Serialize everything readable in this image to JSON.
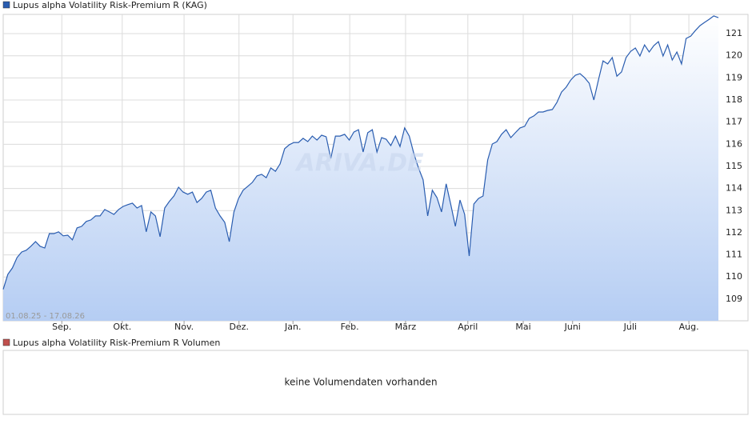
{
  "chart_data": [
    {
      "type": "area",
      "series": [
        {
          "name": "Lupus alpha Volatility Risk-Premium R (KAG)",
          "color": "#2a5db0",
          "values": [
            109.44,
            110.12,
            110.41,
            110.88,
            111.13,
            111.21,
            111.39,
            111.6,
            111.39,
            111.31,
            111.96,
            111.96,
            112.04,
            111.86,
            111.89,
            111.68,
            112.22,
            112.29,
            112.51,
            112.58,
            112.76,
            112.76,
            113.05,
            112.94,
            112.83,
            113.05,
            113.19,
            113.27,
            113.34,
            113.12,
            113.23,
            112.04,
            112.94,
            112.76,
            111.82,
            113.12,
            113.41,
            113.66,
            114.06,
            113.84,
            113.74,
            113.84,
            113.37,
            113.55,
            113.84,
            113.92,
            113.12,
            112.76,
            112.47,
            111.6,
            112.94,
            113.55,
            113.92,
            114.1,
            114.28,
            114.57,
            114.64,
            114.49,
            114.93,
            114.78,
            115.11,
            115.8,
            115.98,
            116.08,
            116.08,
            116.27,
            116.12,
            116.37,
            116.19,
            116.41,
            116.34,
            115.36,
            116.37,
            116.37,
            116.45,
            116.19,
            116.55,
            116.66,
            115.65,
            116.52,
            116.66,
            115.65,
            116.3,
            116.23,
            115.94,
            116.37,
            115.9,
            116.74,
            116.37,
            115.58,
            114.93,
            114.39,
            112.76,
            113.92,
            113.59,
            112.94,
            114.21,
            113.27,
            112.29,
            113.48,
            112.83,
            110.95,
            113.3,
            113.55,
            113.66,
            115.29,
            116.01,
            116.12,
            116.45,
            116.66,
            116.3,
            116.52,
            116.74,
            116.81,
            117.17,
            117.28,
            117.46,
            117.46,
            117.53,
            117.57,
            117.89,
            118.36,
            118.58,
            118.9,
            119.12,
            119.19,
            119.01,
            118.76,
            118.0,
            118.9,
            119.77,
            119.63,
            119.92,
            119.08,
            119.27,
            119.92,
            120.2,
            120.35,
            119.99,
            120.49,
            120.17,
            120.46,
            120.64,
            119.99,
            120.49,
            119.81,
            120.17,
            119.63,
            120.78,
            120.89,
            121.14,
            121.36,
            121.51,
            121.65,
            121.8,
            121.72
          ]
        }
      ],
      "date_range": "01.08.25 - 17.08.26",
      "watermark": "ARIVA.DE",
      "xlim": [
        0,
        155
      ],
      "xticks": [
        {
          "value": 12.7,
          "label": "Sep."
        },
        {
          "value": 25.8,
          "label": "Okt."
        },
        {
          "value": 39.2,
          "label": "Nov."
        },
        {
          "value": 51.1,
          "label": "Dez."
        },
        {
          "value": 62.8,
          "label": "Jan."
        },
        {
          "value": 75.1,
          "label": "Feb."
        },
        {
          "value": 87.2,
          "label": "März"
        },
        {
          "value": 100.7,
          "label": "April"
        },
        {
          "value": 112.7,
          "label": "Mai"
        },
        {
          "value": 123.4,
          "label": "Juni"
        },
        {
          "value": 135.9,
          "label": "Juli"
        },
        {
          "value": 148.6,
          "label": "Aug."
        }
      ],
      "ylim": [
        108.02,
        121.87
      ],
      "yticks": [
        109,
        110,
        111,
        112,
        113,
        114,
        115,
        116,
        117,
        118,
        119,
        120,
        121
      ],
      "grid": true
    },
    {
      "type": "volume",
      "series": [
        {
          "name": "Lupus alpha Volatility Risk-Premium R Volumen",
          "color": "#c0504d"
        }
      ],
      "message": "keine Volumendaten vorhanden"
    }
  ]
}
